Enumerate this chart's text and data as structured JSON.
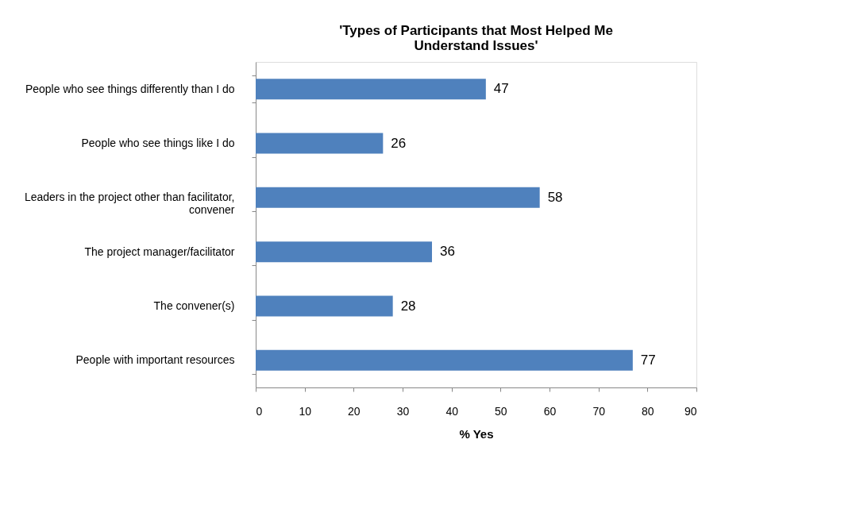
{
  "chart_data": {
    "type": "bar",
    "orientation": "horizontal",
    "title": [
      "'Types of Participants that Most Helped Me",
      "Understand Issues'"
    ],
    "categories": [
      "People who see things differently than I do",
      "People who see things like I do",
      "Leaders in the project other than facilitator, convener",
      "The project manager/facilitator",
      "The convener(s)",
      "People with important resources"
    ],
    "values": [
      47,
      26,
      58,
      36,
      28,
      77
    ],
    "color": "#4f81bd",
    "xlim": [
      0,
      90
    ],
    "xticks": [
      0,
      10,
      20,
      30,
      40,
      50,
      60,
      70,
      80,
      90
    ],
    "xlabel": "% Yes",
    "grid": false,
    "data_labels": true
  }
}
